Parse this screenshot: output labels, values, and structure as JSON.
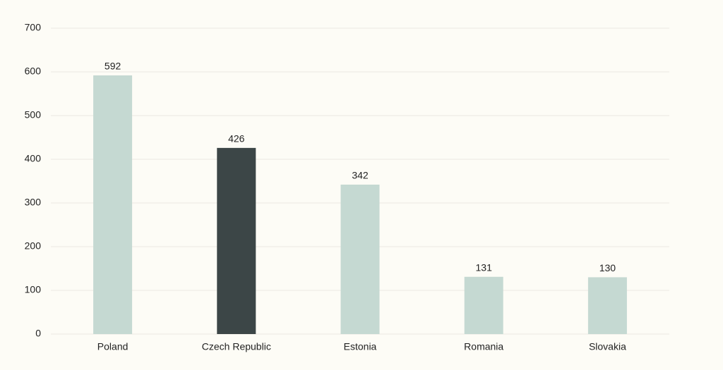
{
  "chart_data": {
    "type": "bar",
    "categories": [
      "Poland",
      "Czech Republic",
      "Estonia",
      "Romania",
      "Slovakia"
    ],
    "values": [
      592,
      426,
      342,
      131,
      130
    ],
    "colors": [
      "#c5d9d2",
      "#3c4647",
      "#c5d9d2",
      "#c5d9d2",
      "#c5d9d2"
    ],
    "ylim": [
      0,
      700
    ],
    "yticks": [
      0,
      100,
      200,
      300,
      400,
      500,
      600,
      700
    ],
    "grid": true
  }
}
